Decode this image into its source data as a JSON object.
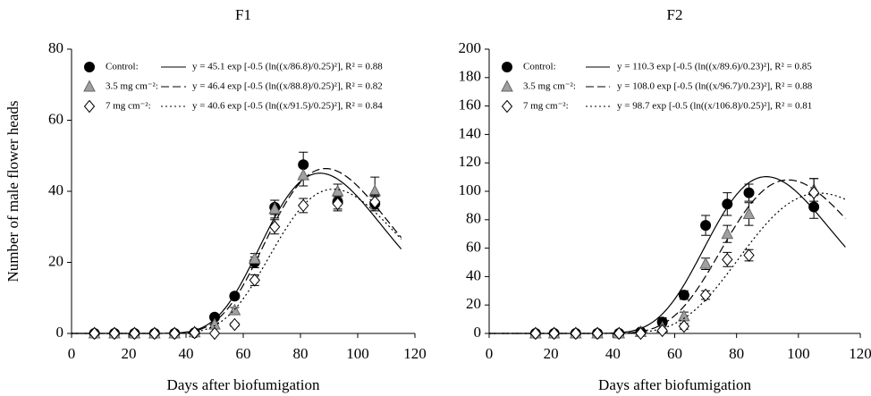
{
  "chart_data": [
    {
      "type": "scatter",
      "title": "F1",
      "x_label": "Days after biofumigation",
      "y_label": "Number of male flower heads",
      "x": [
        8,
        15,
        22,
        29,
        36,
        43,
        50,
        57,
        64,
        71,
        81,
        93,
        106
      ],
      "xlim": [
        0,
        120
      ],
      "xticks": [
        0,
        20,
        40,
        60,
        80,
        100,
        120
      ],
      "ylim": [
        0,
        80
      ],
      "yticks": [
        0,
        20,
        40,
        60,
        80
      ],
      "series": [
        {
          "name": "Control:",
          "color": "#000000",
          "marker": "circle",
          "dash": "solid",
          "values": [
            0,
            0,
            0,
            0,
            0,
            0.2,
            4.6,
            10.5,
            20,
            35.5,
            47.5,
            37,
            36.5
          ],
          "errors": [
            0,
            0,
            0,
            0,
            0,
            0,
            0.5,
            0.8,
            1.5,
            2,
            3.5,
            2,
            2
          ],
          "fit_label": "y = 45.1 exp [-0.5 (ln((x/86.8)/0.25)²],  R² = 0.88",
          "fit": {
            "a": 45.1,
            "x0": 86.8,
            "b": 0.25
          }
        },
        {
          "name": "3.5 mg cm⁻²:",
          "color": "#a0a0a0",
          "marker": "triangle",
          "dash": "dashed",
          "values": [
            0,
            0,
            0,
            0,
            0,
            0.3,
            2.5,
            6.5,
            21,
            35,
            44.5,
            40,
            40
          ],
          "errors": [
            0,
            0,
            0,
            0,
            0,
            0,
            0.5,
            0.8,
            1.5,
            2.5,
            3,
            2,
            4
          ],
          "fit_label": "y = 46.4 exp [-0.5 (ln((x/88.8)/0.25)²],  R² = 0.82",
          "fit": {
            "a": 46.4,
            "x0": 88.8,
            "b": 0.25
          }
        },
        {
          "name": "7 mg cm⁻²:",
          "color": "#ffffff",
          "marker": "diamond",
          "dash": "dotted",
          "values": [
            0,
            0,
            0,
            0,
            0,
            0.2,
            0,
            2.5,
            15,
            30,
            36,
            36.5,
            37
          ],
          "errors": [
            0,
            0,
            0,
            0,
            0,
            0,
            0,
            0.5,
            1.5,
            2,
            2,
            2,
            2
          ],
          "fit_label": "y = 40.6 exp [-0.5 (ln((x/91.5)/0.25)²],  R² = 0.84",
          "fit": {
            "a": 40.6,
            "x0": 91.5,
            "b": 0.25
          }
        }
      ]
    },
    {
      "type": "scatter",
      "title": "F2",
      "x_label": "Days after biofumigation",
      "x": [
        15,
        21,
        28,
        35,
        42,
        49,
        56,
        63,
        70,
        77,
        84,
        105
      ],
      "xlim": [
        0,
        120
      ],
      "xticks": [
        0,
        20,
        40,
        60,
        80,
        100,
        120
      ],
      "ylim": [
        0,
        200
      ],
      "yticks": [
        0,
        20,
        40,
        60,
        80,
        100,
        120,
        140,
        160,
        180,
        200
      ],
      "series": [
        {
          "name": "Control:",
          "color": "#000000",
          "marker": "circle",
          "dash": "solid",
          "values": [
            0,
            0,
            0,
            0,
            0,
            1,
            8,
            27,
            76,
            91,
            99,
            89
          ],
          "errors": [
            0,
            0,
            0,
            0,
            0,
            1,
            3,
            3,
            7,
            8,
            6,
            8
          ],
          "fit_label": "y = 110.3 exp [-0.5 (ln((x/89.6)/0.23)²],  R² = 0.85",
          "fit": {
            "a": 110.3,
            "x0": 89.6,
            "b": 0.23
          }
        },
        {
          "name": "3.5 mg cm⁻²:",
          "color": "#a0a0a0",
          "marker": "triangle",
          "dash": "dashed",
          "values": [
            0,
            0,
            0,
            0,
            0,
            1,
            4,
            12,
            49,
            70,
            84,
            101
          ],
          "errors": [
            0,
            0,
            0,
            0,
            0,
            1,
            2,
            3,
            4,
            6,
            8,
            8
          ],
          "fit_label": "y = 108.0 exp [-0.5 (ln((x/96.7)/0.23)²],  R² = 0.88",
          "fit": {
            "a": 108.0,
            "x0": 96.7,
            "b": 0.23
          }
        },
        {
          "name": "7 mg cm⁻²:",
          "color": "#ffffff",
          "marker": "diamond",
          "dash": "dotted",
          "values": [
            0,
            0,
            0,
            0,
            0,
            0,
            2,
            5,
            27,
            52,
            55,
            99
          ],
          "errors": [
            0,
            0,
            0,
            0,
            0,
            0,
            1,
            2,
            3,
            5,
            4,
            10
          ],
          "fit_label": "y = 98.7 exp [-0.5 (ln((x/106.8)/0.25)²],  R² = 0.81",
          "fit": {
            "a": 98.7,
            "x0": 106.8,
            "b": 0.25
          }
        }
      ]
    }
  ]
}
